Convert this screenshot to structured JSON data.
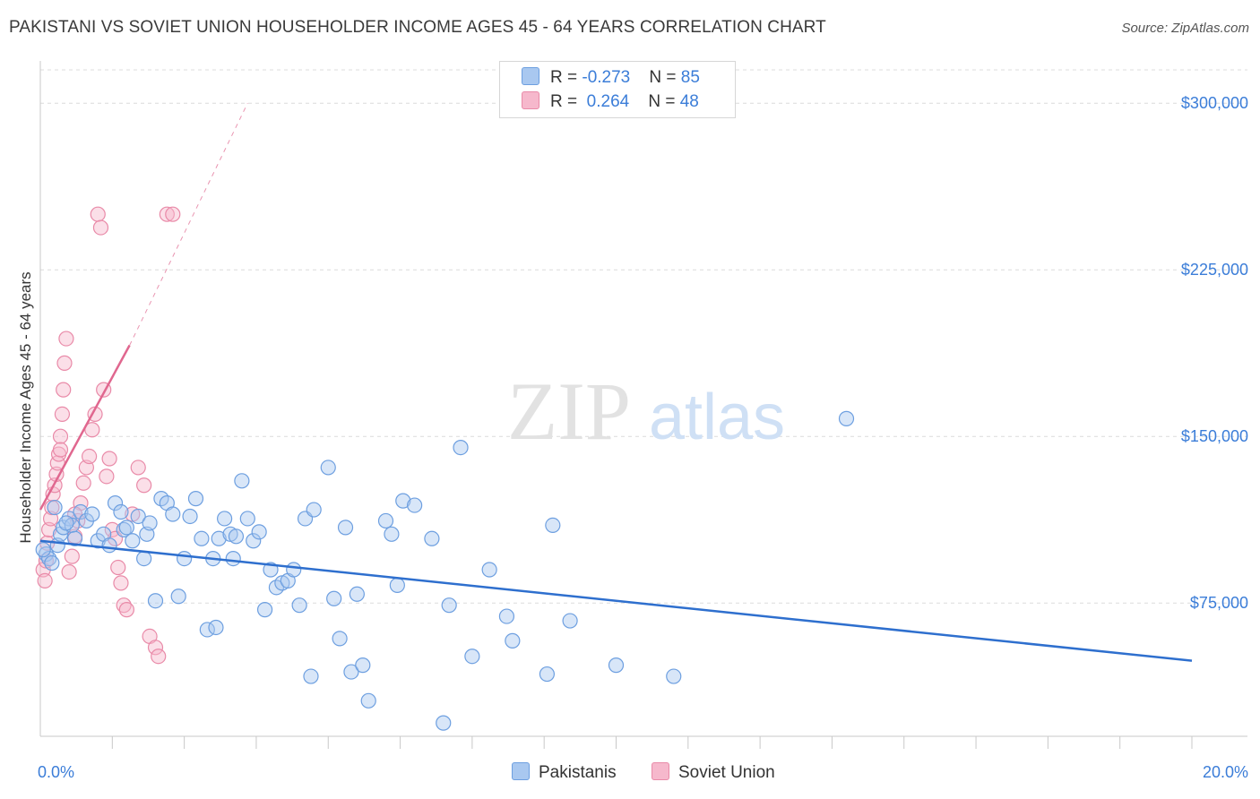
{
  "header": {
    "title": "PAKISTANI VS SOVIET UNION HOUSEHOLDER INCOME AGES 45 - 64 YEARS CORRELATION CHART",
    "source": "Source: ZipAtlas.com"
  },
  "colors": {
    "pakistanis_fill": "#a9c8f0",
    "pakistanis_stroke": "#6d9fe0",
    "pakistanis_line": "#2e6fce",
    "soviet_fill": "#f6b8cc",
    "soviet_stroke": "#e98aa8",
    "soviet_line": "#e0678f",
    "axis_text": "#3b7dd8",
    "grid": "#dcdcdc"
  },
  "legend": {
    "rows": [
      {
        "r_label": "R = ",
        "r_value": "-0.273",
        "n_label": "N = ",
        "n_value": "85"
      },
      {
        "r_label": "R = ",
        "r_value": "0.264",
        "n_label": "N = ",
        "n_value": "48"
      }
    ]
  },
  "watermark": {
    "zip": "ZIP",
    "atlas": "atlas"
  },
  "chart_data": {
    "type": "scatter",
    "title": "PAKISTANI VS SOVIET UNION HOUSEHOLDER INCOME AGES 45 - 64 YEARS CORRELATION CHART",
    "xlabel": "",
    "ylabel": "Householder Income Ages 45 - 64 years",
    "xlim": [
      0,
      20
    ],
    "ylim": [
      15000,
      315000
    ],
    "x_tick_labels": [
      "0.0%",
      "20.0%"
    ],
    "y_ticks": [
      75000,
      150000,
      225000,
      300000
    ],
    "y_tick_labels": [
      "$75,000",
      "$150,000",
      "$225,000",
      "$300,000"
    ],
    "grid": true,
    "legend_position": "bottom-center",
    "series": [
      {
        "name": "Pakistanis",
        "r": -0.273,
        "n": 85,
        "trend": {
          "x": [
            0,
            20
          ],
          "y": [
            103000,
            49000
          ]
        },
        "points": [
          [
            0.1,
            97000
          ],
          [
            0.15,
            95000
          ],
          [
            0.2,
            93000
          ],
          [
            0.3,
            101000
          ],
          [
            0.35,
            106000
          ],
          [
            0.4,
            109000
          ],
          [
            0.5,
            113000
          ],
          [
            0.55,
            110000
          ],
          [
            0.6,
            104000
          ],
          [
            0.7,
            116000
          ],
          [
            0.8,
            112000
          ],
          [
            0.9,
            115000
          ],
          [
            1.0,
            103000
          ],
          [
            1.1,
            106000
          ],
          [
            1.2,
            101000
          ],
          [
            1.3,
            120000
          ],
          [
            1.4,
            116000
          ],
          [
            1.45,
            108000
          ],
          [
            1.5,
            109000
          ],
          [
            1.6,
            103000
          ],
          [
            1.7,
            114000
          ],
          [
            1.8,
            95000
          ],
          [
            1.85,
            106000
          ],
          [
            1.9,
            111000
          ],
          [
            2.0,
            76000
          ],
          [
            2.1,
            122000
          ],
          [
            2.2,
            120000
          ],
          [
            2.3,
            115000
          ],
          [
            2.4,
            78000
          ],
          [
            2.5,
            95000
          ],
          [
            2.6,
            114000
          ],
          [
            2.7,
            122000
          ],
          [
            2.8,
            104000
          ],
          [
            2.9,
            63000
          ],
          [
            3.0,
            95000
          ],
          [
            3.05,
            64000
          ],
          [
            3.1,
            104000
          ],
          [
            3.2,
            113000
          ],
          [
            3.3,
            106000
          ],
          [
            3.35,
            95000
          ],
          [
            3.4,
            105000
          ],
          [
            3.5,
            130000
          ],
          [
            3.6,
            113000
          ],
          [
            3.7,
            103000
          ],
          [
            3.8,
            107000
          ],
          [
            3.9,
            72000
          ],
          [
            4.0,
            90000
          ],
          [
            4.1,
            82000
          ],
          [
            4.2,
            84000
          ],
          [
            4.3,
            85000
          ],
          [
            4.4,
            90000
          ],
          [
            4.5,
            74000
          ],
          [
            4.6,
            113000
          ],
          [
            4.7,
            42000
          ],
          [
            4.75,
            117000
          ],
          [
            5.0,
            136000
          ],
          [
            5.1,
            77000
          ],
          [
            5.2,
            59000
          ],
          [
            5.3,
            109000
          ],
          [
            5.4,
            44000
          ],
          [
            5.5,
            79000
          ],
          [
            5.6,
            47000
          ],
          [
            5.7,
            31000
          ],
          [
            6.0,
            112000
          ],
          [
            6.1,
            106000
          ],
          [
            6.2,
            83000
          ],
          [
            6.3,
            121000
          ],
          [
            6.5,
            119000
          ],
          [
            6.8,
            104000
          ],
          [
            7.0,
            21000
          ],
          [
            7.1,
            74000
          ],
          [
            7.3,
            145000
          ],
          [
            7.5,
            51000
          ],
          [
            7.8,
            90000
          ],
          [
            8.1,
            69000
          ],
          [
            8.2,
            58000
          ],
          [
            8.8,
            43000
          ],
          [
            8.9,
            110000
          ],
          [
            9.2,
            67000
          ],
          [
            10.0,
            47000
          ],
          [
            11.0,
            42000
          ],
          [
            14.0,
            158000
          ],
          [
            0.05,
            99000
          ],
          [
            0.25,
            118000
          ],
          [
            0.45,
            111000
          ]
        ]
      },
      {
        "name": "Soviet Union",
        "r": 0.264,
        "n": 48,
        "trend": {
          "x": [
            0,
            1.55
          ],
          "y": [
            117000,
            191000
          ]
        },
        "trend_extension": {
          "x": [
            1.55,
            3.6
          ],
          "y": [
            191000,
            300000
          ]
        },
        "points": [
          [
            0.05,
            90000
          ],
          [
            0.08,
            85000
          ],
          [
            0.1,
            94000
          ],
          [
            0.12,
            102000
          ],
          [
            0.15,
            108000
          ],
          [
            0.18,
            113000
          ],
          [
            0.2,
            118000
          ],
          [
            0.22,
            124000
          ],
          [
            0.25,
            128000
          ],
          [
            0.28,
            133000
          ],
          [
            0.3,
            138000
          ],
          [
            0.32,
            142000
          ],
          [
            0.35,
            150000
          ],
          [
            0.38,
            160000
          ],
          [
            0.4,
            171000
          ],
          [
            0.42,
            183000
          ],
          [
            0.45,
            194000
          ],
          [
            0.5,
            89000
          ],
          [
            0.55,
            96000
          ],
          [
            0.6,
            105000
          ],
          [
            0.65,
            112000
          ],
          [
            0.7,
            120000
          ],
          [
            0.75,
            129000
          ],
          [
            0.8,
            136000
          ],
          [
            0.85,
            141000
          ],
          [
            0.9,
            153000
          ],
          [
            0.95,
            160000
          ],
          [
            1.0,
            250000
          ],
          [
            1.05,
            244000
          ],
          [
            1.1,
            171000
          ],
          [
            1.15,
            132000
          ],
          [
            1.2,
            140000
          ],
          [
            1.25,
            108000
          ],
          [
            1.3,
            104000
          ],
          [
            1.35,
            91000
          ],
          [
            1.4,
            84000
          ],
          [
            1.45,
            74000
          ],
          [
            1.5,
            72000
          ],
          [
            1.6,
            115000
          ],
          [
            1.7,
            136000
          ],
          [
            1.8,
            128000
          ],
          [
            1.9,
            60000
          ],
          [
            2.0,
            55000
          ],
          [
            2.05,
            51000
          ],
          [
            2.2,
            250000
          ],
          [
            2.3,
            250000
          ],
          [
            0.35,
            144000
          ],
          [
            0.6,
            115000
          ]
        ]
      }
    ]
  },
  "bottom_legend": {
    "pakistanis": "Pakistanis",
    "soviet": "Soviet Union"
  }
}
